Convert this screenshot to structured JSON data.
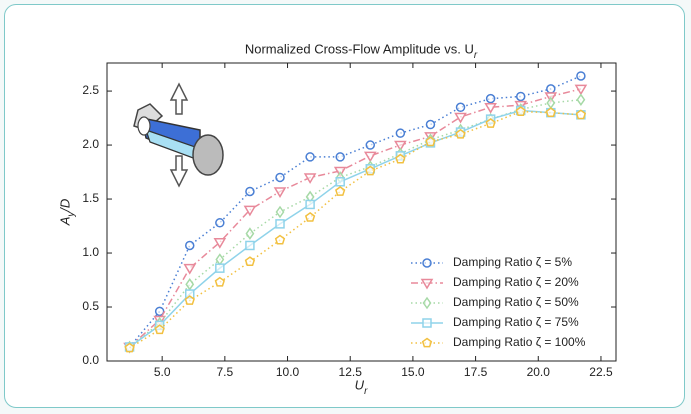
{
  "chart_data": {
    "type": "line",
    "title": "Normalized Cross-Flow Amplitude vs. U_r",
    "xlabel": "U_r",
    "ylabel": "A_y/D",
    "x": [
      3.7,
      4.9,
      6.1,
      7.3,
      8.5,
      9.7,
      10.9,
      12.1,
      13.3,
      14.5,
      15.7,
      16.9,
      18.1,
      19.3,
      20.5,
      21.7
    ],
    "series": [
      {
        "name": "Damping Ratio ζ = 5%",
        "color": "#4a7fd4",
        "marker": "circle",
        "dash": "dotted",
        "values": [
          0.13,
          0.46,
          1.07,
          1.28,
          1.57,
          1.7,
          1.89,
          1.89,
          2.0,
          2.11,
          2.19,
          2.35,
          2.43,
          2.45,
          2.52,
          2.64
        ]
      },
      {
        "name": "Damping Ratio ζ = 20%",
        "color": "#e8899a",
        "marker": "triangle-down",
        "dash": "dashdot",
        "values": [
          0.13,
          0.38,
          0.86,
          1.1,
          1.4,
          1.57,
          1.7,
          1.76,
          1.9,
          2.0,
          2.08,
          2.26,
          2.35,
          2.37,
          2.45,
          2.52
        ]
      },
      {
        "name": "Damping Ratio ζ = 50%",
        "color": "#a6d9a6",
        "marker": "diamond",
        "dash": "dotted",
        "values": [
          0.13,
          0.35,
          0.71,
          0.94,
          1.18,
          1.38,
          1.52,
          1.7,
          1.8,
          1.92,
          2.05,
          2.14,
          2.24,
          2.33,
          2.39,
          2.42
        ]
      },
      {
        "name": "Damping Ratio ζ = 75%",
        "color": "#8fd3ea",
        "marker": "square",
        "dash": "solid",
        "values": [
          0.13,
          0.33,
          0.62,
          0.86,
          1.07,
          1.27,
          1.45,
          1.66,
          1.78,
          1.9,
          2.02,
          2.12,
          2.24,
          2.32,
          2.3,
          2.28
        ]
      },
      {
        "name": "Damping Ratio ζ = 100%",
        "color": "#f2c040",
        "marker": "pentagon",
        "dash": "dotted",
        "values": [
          0.12,
          0.29,
          0.56,
          0.73,
          0.92,
          1.12,
          1.33,
          1.57,
          1.76,
          1.87,
          2.03,
          2.1,
          2.2,
          2.31,
          2.3,
          2.28
        ]
      }
    ],
    "xlim": [
      2.8,
      23.1
    ],
    "ylim": [
      0,
      2.76
    ],
    "xticks": [
      {
        "value": 5,
        "label": "5.0"
      },
      7.5,
      {
        "value": 10,
        "label": "10.0"
      },
      12.5,
      {
        "value": 15,
        "label": "15.0"
      },
      17.5,
      {
        "value": 20,
        "label": "20.0"
      },
      22.5
    ],
    "yticks": [
      {
        "value": 0,
        "label": "0.0"
      },
      0.5,
      {
        "value": 1,
        "label": "1.0"
      },
      1.5,
      {
        "value": 2,
        "label": "2.0"
      },
      2.5
    ],
    "grid": false,
    "legend": "lower right"
  }
}
